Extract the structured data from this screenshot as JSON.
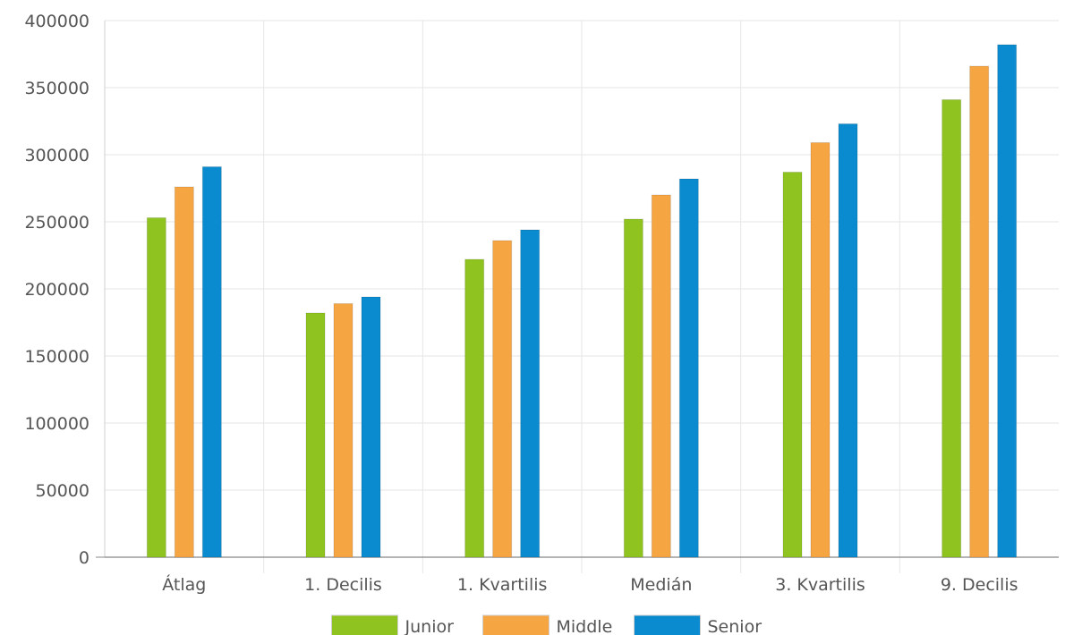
{
  "chart_data": {
    "type": "bar",
    "categories": [
      "Átlag",
      "1. Decilis",
      "1. Kvartilis",
      "Medián",
      "3. Kvartilis",
      "9. Decilis"
    ],
    "series": [
      {
        "name": "Junior",
        "color": "#8fc31f",
        "values": [
          253000,
          182000,
          222000,
          252000,
          287000,
          341000
        ]
      },
      {
        "name": "Middle",
        "color": "#f6a543",
        "values": [
          276000,
          189000,
          236000,
          270000,
          309000,
          366000
        ]
      },
      {
        "name": "Senior",
        "color": "#0b8bcf",
        "values": [
          291000,
          194000,
          244000,
          282000,
          323000,
          382000
        ]
      }
    ],
    "y_ticks": [
      "0",
      "50000",
      "100000",
      "150000",
      "200000",
      "250000",
      "300000",
      "350000",
      "400000"
    ],
    "ylim": [
      0,
      400000
    ],
    "grid": true,
    "legend_position": "bottom"
  }
}
